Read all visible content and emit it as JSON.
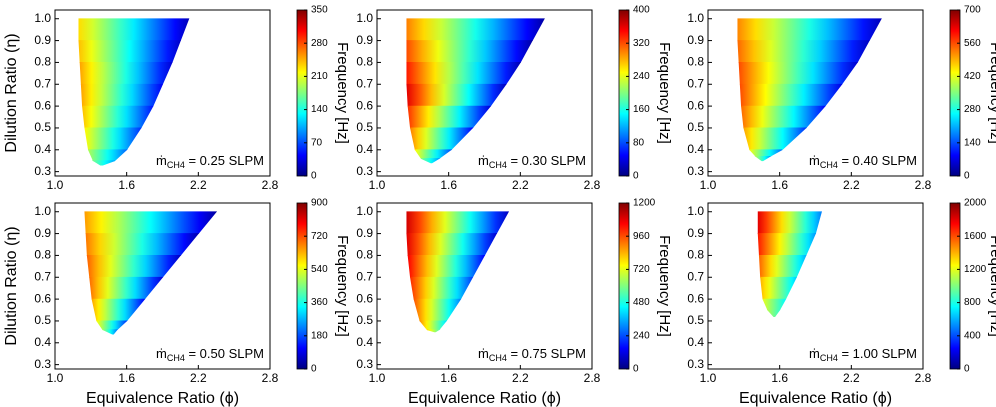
{
  "chart_data": [
    {
      "type": "contour",
      "xlim": [
        1.0,
        2.8
      ],
      "xticks": [
        {
          "value": 1.0,
          "label": "1.0"
        },
        1.6,
        2.2,
        {
          "value": 2.8,
          "label": "2.8"
        }
      ],
      "ylim": [
        0.28,
        1.04
      ],
      "yticks": [
        0.3,
        0.4,
        0.5,
        0.6,
        0.7,
        0.8,
        0.9,
        {
          "value": 1.0,
          "label": "1.0"
        }
      ],
      "ylabel": "Dilution Ratio (η)",
      "annotation": {
        "symbol": "ṁ",
        "subscript": "CH4",
        "text": " = 0.25 SLPM"
      },
      "colorbar": {
        "label": "Frequency [Hz]",
        "colormap": "jet",
        "clim": [
          0,
          350
        ],
        "ticks": [
          0,
          70,
          140,
          210,
          280,
          350
        ]
      },
      "levels": {
        "y": [
          1.0,
          0.9,
          0.8,
          0.7,
          0.6,
          0.5,
          0.4,
          0.35,
          0.33
        ],
        "x_left": [
          1.2,
          1.2,
          1.21,
          1.22,
          1.23,
          1.25,
          1.28,
          1.32,
          1.38
        ],
        "x_right": [
          2.12,
          2.05,
          1.98,
          1.9,
          1.82,
          1.72,
          1.6,
          1.5,
          1.4
        ],
        "z_left": [
          230,
          240,
          250,
          250,
          240,
          220,
          190,
          170,
          150
        ],
        "z_right": [
          20,
          25,
          30,
          40,
          50,
          60,
          80,
          100,
          140
        ]
      }
    },
    {
      "type": "contour",
      "xlim": [
        1.0,
        2.8
      ],
      "xticks": [
        {
          "value": 1.0,
          "label": "1.0"
        },
        1.6,
        2.2,
        {
          "value": 2.8,
          "label": "2.8"
        }
      ],
      "ylim": [
        0.28,
        1.04
      ],
      "yticks": [
        0.3,
        0.4,
        0.5,
        0.6,
        0.7,
        0.8,
        0.9,
        {
          "value": 1.0,
          "label": "1.0"
        }
      ],
      "annotation": {
        "symbol": "ṁ",
        "subscript": "CH4",
        "text": " = 0.30 SLPM"
      },
      "colorbar": {
        "label": "Frequency [Hz]",
        "colormap": "jet",
        "clim": [
          0,
          400
        ],
        "ticks": [
          0,
          80,
          160,
          240,
          320,
          400
        ]
      },
      "levels": {
        "y": [
          1.0,
          0.9,
          0.8,
          0.7,
          0.6,
          0.5,
          0.4,
          0.36,
          0.34
        ],
        "x_left": [
          1.25,
          1.25,
          1.25,
          1.25,
          1.26,
          1.28,
          1.32,
          1.37,
          1.45
        ],
        "x_right": [
          2.4,
          2.3,
          2.2,
          2.08,
          1.95,
          1.8,
          1.62,
          1.52,
          1.46
        ],
        "z_left": [
          300,
          320,
          340,
          360,
          330,
          300,
          250,
          200,
          160
        ],
        "z_right": [
          15,
          15,
          20,
          25,
          35,
          50,
          80,
          110,
          150
        ]
      }
    },
    {
      "type": "contour",
      "xlim": [
        1.0,
        2.8
      ],
      "xticks": [
        {
          "value": 1.0,
          "label": "1.0"
        },
        1.6,
        2.2,
        {
          "value": 2.8,
          "label": "2.8"
        }
      ],
      "ylim": [
        0.28,
        1.04
      ],
      "yticks": [
        0.3,
        0.4,
        0.5,
        0.6,
        0.7,
        0.8,
        0.9,
        {
          "value": 1.0,
          "label": "1.0"
        }
      ],
      "annotation": {
        "symbol": "ṁ",
        "subscript": "CH4",
        "text": " = 0.40 SLPM"
      },
      "colorbar": {
        "label": "Frequency [Hz]",
        "colormap": "jet",
        "clim": [
          0,
          700
        ],
        "ticks": [
          0,
          140,
          280,
          420,
          560,
          700
        ]
      },
      "levels": {
        "y": [
          1.0,
          0.9,
          0.8,
          0.7,
          0.6,
          0.5,
          0.4,
          0.37,
          0.35
        ],
        "x_left": [
          1.25,
          1.25,
          1.26,
          1.27,
          1.28,
          1.3,
          1.35,
          1.4,
          1.45
        ],
        "x_right": [
          2.45,
          2.35,
          2.25,
          2.12,
          1.98,
          1.82,
          1.62,
          1.52,
          1.46
        ],
        "z_left": [
          520,
          540,
          560,
          560,
          540,
          500,
          430,
          380,
          300
        ],
        "z_right": [
          40,
          45,
          55,
          70,
          90,
          120,
          160,
          200,
          260
        ]
      }
    },
    {
      "type": "contour",
      "xlim": [
        1.0,
        2.8
      ],
      "xticks": [
        {
          "value": 1.0,
          "label": "1.0"
        },
        1.6,
        2.2,
        {
          "value": 2.8,
          "label": "2.8"
        }
      ],
      "ylim": [
        0.28,
        1.04
      ],
      "yticks": [
        0.3,
        0.4,
        0.5,
        0.6,
        0.7,
        0.8,
        0.9,
        {
          "value": 1.0,
          "label": "1.0"
        }
      ],
      "xlabel": "Equivalence Ratio (ϕ)",
      "ylabel": "Dilution Ratio (η)",
      "annotation": {
        "symbol": "ṁ",
        "subscript": "CH4",
        "text": " = 0.50 SLPM"
      },
      "colorbar": {
        "label": "Frequency [Hz]",
        "colormap": "jet",
        "clim": [
          0,
          900
        ],
        "ticks": [
          0,
          180,
          360,
          540,
          720,
          900
        ]
      },
      "levels": {
        "y": [
          1.0,
          0.9,
          0.8,
          0.7,
          0.6,
          0.5,
          0.46,
          0.44
        ],
        "x_left": [
          1.25,
          1.26,
          1.27,
          1.29,
          1.31,
          1.35,
          1.4,
          1.48
        ],
        "x_right": [
          2.35,
          2.2,
          2.05,
          1.9,
          1.75,
          1.6,
          1.52,
          1.49
        ],
        "z_left": [
          650,
          680,
          700,
          690,
          640,
          560,
          480,
          420
        ],
        "z_right": [
          30,
          40,
          60,
          80,
          110,
          160,
          220,
          300
        ]
      }
    },
    {
      "type": "contour",
      "xlim": [
        1.0,
        2.8
      ],
      "xticks": [
        {
          "value": 1.0,
          "label": "1.0"
        },
        1.6,
        2.2,
        {
          "value": 2.8,
          "label": "2.8"
        }
      ],
      "ylim": [
        0.28,
        1.04
      ],
      "yticks": [
        0.3,
        0.4,
        0.5,
        0.6,
        0.7,
        0.8,
        0.9,
        {
          "value": 1.0,
          "label": "1.0"
        }
      ],
      "xlabel": "Equivalence Ratio (ϕ)",
      "annotation": {
        "symbol": "ṁ",
        "subscript": "CH4",
        "text": " = 0.75 SLPM"
      },
      "colorbar": {
        "label": "Frequency [Hz]",
        "colormap": "jet",
        "clim": [
          0,
          1200
        ],
        "ticks": [
          0,
          240,
          480,
          720,
          960,
          1200
        ]
      },
      "levels": {
        "y": [
          1.0,
          0.9,
          0.8,
          0.7,
          0.6,
          0.5,
          0.46,
          0.45
        ],
        "x_left": [
          1.25,
          1.25,
          1.26,
          1.28,
          1.31,
          1.36,
          1.42,
          1.48
        ],
        "x_right": [
          2.1,
          2.0,
          1.9,
          1.8,
          1.7,
          1.58,
          1.52,
          1.49
        ],
        "z_left": [
          1100,
          1080,
          1050,
          1000,
          950,
          880,
          800,
          750
        ],
        "z_right": [
          80,
          100,
          150,
          220,
          300,
          420,
          550,
          650
        ]
      }
    },
    {
      "type": "contour",
      "xlim": [
        1.0,
        2.8
      ],
      "xticks": [
        {
          "value": 1.0,
          "label": "1.0"
        },
        1.6,
        2.2,
        {
          "value": 2.8,
          "label": "2.8"
        }
      ],
      "ylim": [
        0.28,
        1.04
      ],
      "yticks": [
        0.3,
        0.4,
        0.5,
        0.6,
        0.7,
        0.8,
        0.9,
        {
          "value": 1.0,
          "label": "1.0"
        }
      ],
      "xlabel": "Equivalence Ratio (ϕ)",
      "annotation": {
        "symbol": "ṁ",
        "subscript": "CH4",
        "text": " = 1.00 SLPM"
      },
      "colorbar": {
        "label": "Frequency [Hz]",
        "colormap": "jet",
        "clim": [
          0,
          2000
        ],
        "ticks": [
          0,
          400,
          800,
          1200,
          1600,
          2000
        ]
      },
      "levels": {
        "y": [
          1.0,
          0.9,
          0.8,
          0.7,
          0.6,
          0.55,
          0.52
        ],
        "x_left": [
          1.42,
          1.42,
          1.43,
          1.44,
          1.46,
          1.5,
          1.55
        ],
        "x_right": [
          1.95,
          1.9,
          1.82,
          1.74,
          1.65,
          1.6,
          1.56
        ],
        "z_left": [
          1800,
          1700,
          1550,
          1400,
          1200,
          1100,
          1000
        ],
        "z_right": [
          500,
          550,
          600,
          650,
          750,
          850,
          950
        ]
      }
    }
  ]
}
